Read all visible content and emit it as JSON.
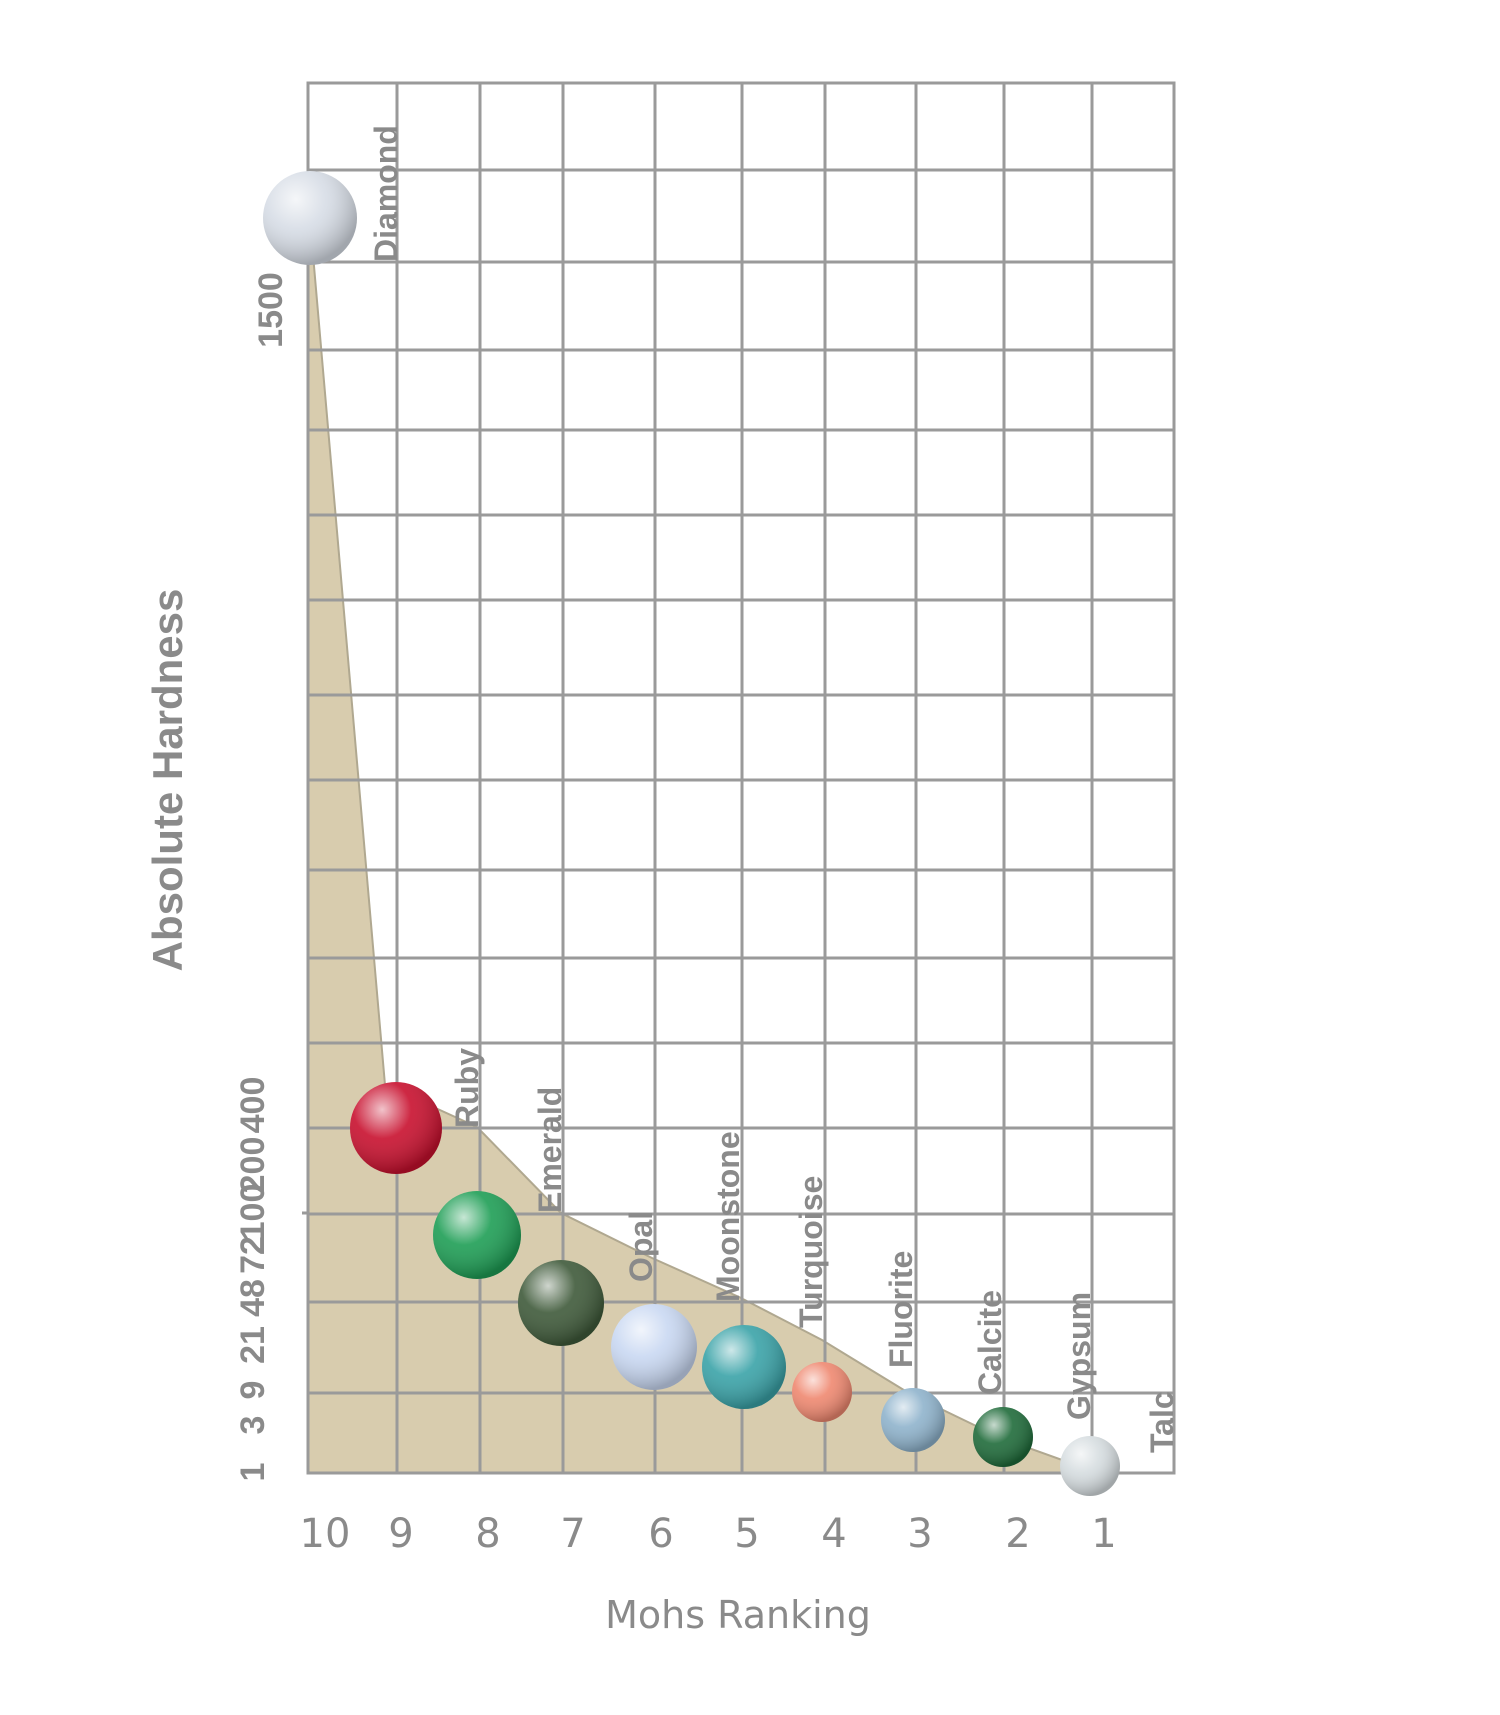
{
  "chart_data": {
    "type": "area",
    "xlabel": "Mohs Ranking",
    "ylabel": "Absolute Hardness",
    "x_ticks": [
      "10",
      "9",
      "8",
      "7",
      "6",
      "5",
      "4",
      "3",
      "2",
      "1"
    ],
    "y_ticks": [
      "1",
      "3",
      "9",
      "21",
      "48",
      "72",
      "100",
      "200",
      "400",
      "1500"
    ],
    "grid": true,
    "area_color": "#d8ccae",
    "points": [
      {
        "name": "Diamond",
        "mohs": 10,
        "hardness": 1500,
        "color": "#d7dde6"
      },
      {
        "name": "Ruby",
        "mohs": 9,
        "hardness": 400,
        "color": "#c8102e"
      },
      {
        "name": "Emerald",
        "mohs": 8,
        "hardness": 100,
        "color": "#1e9e55"
      },
      {
        "name": "Opal",
        "mohs": 7,
        "hardness": 72,
        "color": "#3f5a3a"
      },
      {
        "name": "Moonstone",
        "mohs": 6,
        "hardness": 48,
        "color": "#c9d8f2"
      },
      {
        "name": "Turquoise",
        "mohs": 5,
        "hardness": 21,
        "color": "#3aa3a8"
      },
      {
        "name": "Fluorite",
        "mohs": 4,
        "hardness": 9,
        "color": "#ef8870"
      },
      {
        "name": "Calcite",
        "mohs": 3,
        "hardness": 3,
        "color": "#8fb3cc"
      },
      {
        "name": "Gypsum",
        "mohs": 2,
        "hardness": 2,
        "color": "#1f6b3a"
      },
      {
        "name": "Talc",
        "mohs": 1,
        "hardness": 1,
        "color": "#d6dde0"
      }
    ]
  }
}
